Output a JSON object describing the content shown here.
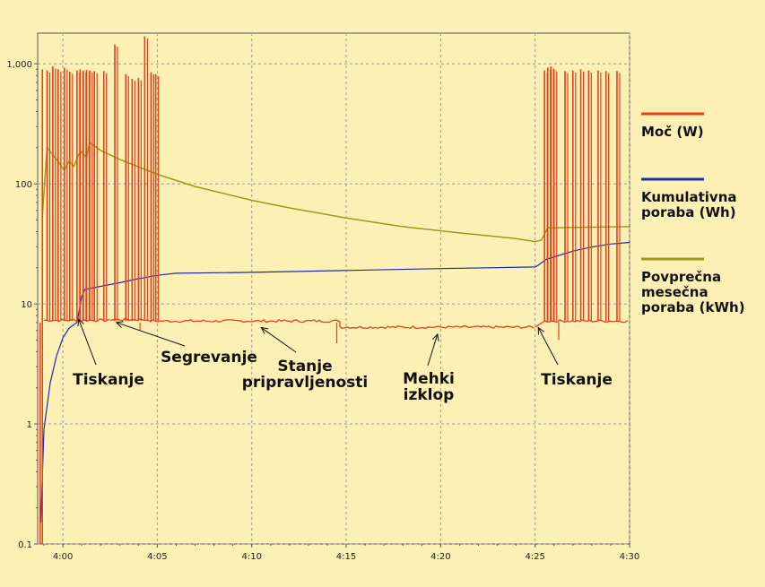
{
  "chart_data": {
    "type": "line",
    "y_scale": "log",
    "ylim": [
      0.1,
      1800
    ],
    "xlim": [
      "3:58:40",
      "4:30:00"
    ],
    "grid": true,
    "legend_position": "right",
    "x_ticks": [
      "4:00",
      "4:05",
      "4:10",
      "4:15",
      "4:20",
      "4:25",
      "4:30"
    ],
    "y_ticks": [
      "0.1",
      "1",
      "10",
      "100",
      "1,000"
    ],
    "series": [
      {
        "name": "Moč (W)",
        "color": "#e2401e",
        "baseline_segments": [
          {
            "from": "3:59:00",
            "to": "4:02:30",
            "value": 7.3
          },
          {
            "from": "4:02:30",
            "to": "4:04:30",
            "value": 7.4
          },
          {
            "from": "4:04:30",
            "to": "4:14:40",
            "value": 7.2
          },
          {
            "from": "4:14:40",
            "to": "4:25:00",
            "value": 6.4
          },
          {
            "from": "4:25:30",
            "to": "4:30:00",
            "value": 7.2
          }
        ],
        "spikes": [
          {
            "t": "3:59:10",
            "value": 880
          },
          {
            "t": "3:59:28",
            "value": 950
          },
          {
            "t": "3:59:45",
            "value": 900
          },
          {
            "t": "4:00:05",
            "value": 930
          },
          {
            "t": "4:00:22",
            "value": 860
          },
          {
            "t": "4:00:45",
            "value": 880
          },
          {
            "t": "4:00:55",
            "value": 900
          },
          {
            "t": "4:01:05",
            "value": 880
          },
          {
            "t": "4:01:15",
            "value": 890
          },
          {
            "t": "4:01:25",
            "value": 880
          },
          {
            "t": "4:01:40",
            "value": 870
          },
          {
            "t": "4:02:10",
            "value": 870
          },
          {
            "t": "4:02:45",
            "value": 1450
          },
          {
            "t": "4:03:20",
            "value": 820
          },
          {
            "t": "4:03:40",
            "value": 750
          },
          {
            "t": "4:04:00",
            "value": 760
          },
          {
            "t": "4:04:20",
            "value": 1700
          },
          {
            "t": "4:04:40",
            "value": 850
          },
          {
            "t": "4:04:55",
            "value": 820
          },
          {
            "t": "4:25:30",
            "value": 880
          },
          {
            "t": "4:25:40",
            "value": 930
          },
          {
            "t": "4:25:50",
            "value": 950
          },
          {
            "t": "4:26:00",
            "value": 900
          },
          {
            "t": "4:26:35",
            "value": 870
          },
          {
            "t": "4:27:00",
            "value": 880
          },
          {
            "t": "4:27:25",
            "value": 900
          },
          {
            "t": "4:27:50",
            "value": 880
          },
          {
            "t": "4:28:20",
            "value": 880
          },
          {
            "t": "4:28:45",
            "value": 870
          },
          {
            "t": "4:29:20",
            "value": 870
          }
        ]
      },
      {
        "name": "Kumulativna poraba (Wh)",
        "color": "#1c2aa8",
        "points": [
          [
            "3:58:50",
            0.15
          ],
          [
            "3:59:00",
            0.9
          ],
          [
            "3:59:20",
            2.2
          ],
          [
            "3:59:40",
            3.7
          ],
          [
            "4:00:00",
            5.2
          ],
          [
            "4:00:20",
            6.3
          ],
          [
            "4:00:45",
            7.0
          ],
          [
            "4:01:00",
            11.5
          ],
          [
            "4:01:10",
            13.2
          ],
          [
            "4:02:00",
            14.0
          ],
          [
            "4:03:00",
            15.0
          ],
          [
            "4:04:00",
            16.2
          ],
          [
            "4:05:00",
            17.3
          ],
          [
            "4:06:00",
            18.0
          ],
          [
            "4:10:00",
            18.3
          ],
          [
            "4:15:00",
            19.0
          ],
          [
            "4:20:00",
            19.7
          ],
          [
            "4:25:00",
            20.3
          ],
          [
            "4:25:10",
            21.0
          ],
          [
            "4:25:35",
            23.5
          ],
          [
            "4:27:00",
            27.5
          ],
          [
            "4:28:00",
            29.8
          ],
          [
            "4:29:00",
            31.5
          ],
          [
            "4:30:00",
            32.5
          ]
        ]
      },
      {
        "name": "Povprečna mesečna poraba (kWh)",
        "color": "#a0981c",
        "points": [
          [
            "3:58:55",
            55
          ],
          [
            "3:59:10",
            200
          ],
          [
            "3:59:40",
            160
          ],
          [
            "4:00:05",
            130
          ],
          [
            "4:00:20",
            155
          ],
          [
            "4:00:35",
            140
          ],
          [
            "4:00:50",
            175
          ],
          [
            "4:01:00",
            185
          ],
          [
            "4:01:15",
            165
          ],
          [
            "4:01:25",
            220
          ],
          [
            "4:02:00",
            190
          ],
          [
            "4:03:00",
            160
          ],
          [
            "4:05:00",
            120
          ],
          [
            "4:07:00",
            95
          ],
          [
            "4:10:00",
            73
          ],
          [
            "4:12:00",
            63
          ],
          [
            "4:15:00",
            52
          ],
          [
            "4:18:00",
            44
          ],
          [
            "4:21:00",
            39
          ],
          [
            "4:24:00",
            35
          ],
          [
            "4:25:00",
            33
          ],
          [
            "4:25:20",
            34
          ],
          [
            "4:25:40",
            43
          ],
          [
            "4:30:00",
            44
          ]
        ]
      }
    ],
    "annotations": [
      {
        "lines": [
          "Tiskanje"
        ],
        "target": [
          "4:00:50",
          8
        ]
      },
      {
        "lines": [
          "Segrevanje"
        ],
        "target": [
          "4:02:50",
          7.5
        ]
      },
      {
        "lines": [
          "Stanje",
          "pripravljenosti"
        ],
        "target": [
          "4:10:30",
          6.8
        ]
      },
      {
        "lines": [
          "Mehki",
          "izklop"
        ],
        "target": [
          "4:19:50",
          6.0
        ]
      },
      {
        "lines": [
          "Tiskanje"
        ],
        "target": [
          "4:25:10",
          6.8
        ]
      }
    ]
  }
}
